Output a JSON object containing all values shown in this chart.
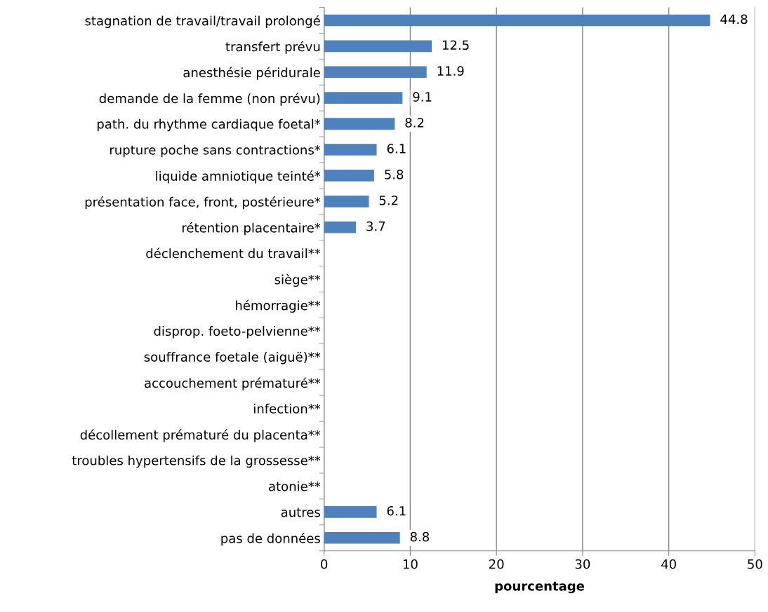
{
  "chart_data": {
    "type": "bar",
    "orientation": "horizontal",
    "xlabel": "pourcentage",
    "categories": [
      "stagnation de travail/travail prolongé",
      "transfert prévu",
      "anesthésie péridurale",
      "demande de la femme (non prévu)",
      "path. du rhythme cardiaque foetal*",
      "rupture poche sans contractions*",
      "liquide amniotique teinté*",
      "présentation face, front, postérieure*",
      "rétention placentaire*",
      "déclenchement du travail**",
      "siège**",
      "hémorragie**",
      "disprop. foeto-pelvienne**",
      "souffrance foetale (aiguë)**",
      "accouchement prématuré**",
      "infection**",
      "décollement prématuré du placenta**",
      "troubles hypertensifs de la grossesse**",
      "atonie**",
      "autres",
      "pas de données"
    ],
    "values": [
      44.8,
      12.5,
      11.9,
      9.1,
      8.2,
      6.1,
      5.8,
      5.2,
      3.7,
      null,
      null,
      null,
      null,
      null,
      null,
      null,
      null,
      null,
      null,
      6.1,
      8.8
    ],
    "color": "#4f81bd",
    "xlim": [
      0,
      50
    ],
    "xticks": [
      0,
      10,
      20,
      30,
      40,
      50
    ],
    "grid": "x",
    "data_labels": true
  }
}
